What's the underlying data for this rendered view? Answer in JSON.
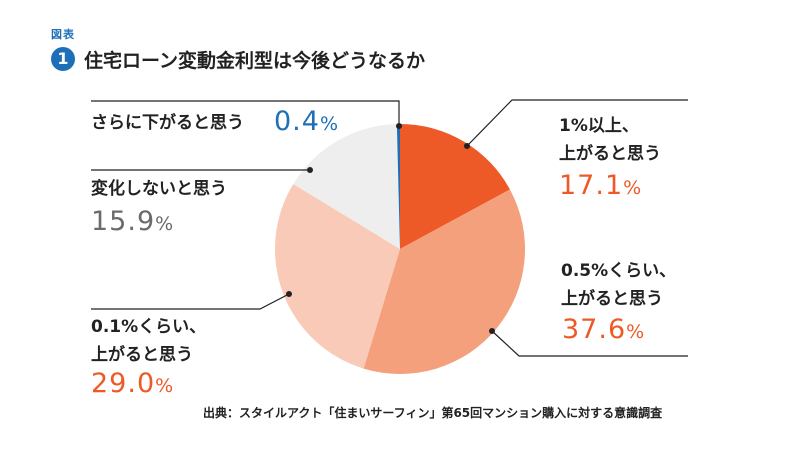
{
  "figure_label": "図表",
  "badge_number": "1",
  "title": "住宅ローン変動金利型は今後どうなるか",
  "source": "出典：スタイルアクト「住まいサーフィン」第65回マンション購入に対する意識調査",
  "chart_data": {
    "type": "pie",
    "start_angle_deg": 0,
    "direction": "clockwise",
    "slices": [
      {
        "label_lines": [
          "1%以上、",
          "上がると思う"
        ],
        "value": 17.1,
        "value_text": "17.1",
        "unit": "%",
        "color": "#ee5a27",
        "label_color": "#ee5a27"
      },
      {
        "label_lines": [
          "0.5%くらい、",
          "上がると思う"
        ],
        "value": 37.6,
        "value_text": "37.6",
        "unit": "%",
        "color": "#f4a07c",
        "label_color": "#ee5a27"
      },
      {
        "label_lines": [
          "0.1%くらい、",
          "上がると思う"
        ],
        "value": 29.0,
        "value_text": "29.0",
        "unit": "%",
        "color": "#f8cab7",
        "label_color": "#ee5a27"
      },
      {
        "label_lines": [
          "変化しないと思う"
        ],
        "value": 15.9,
        "value_text": "15.9",
        "unit": "%",
        "color": "#eeeeee",
        "label_color": "#6b6b6b"
      },
      {
        "label_lines": [
          "さらに下がると思う"
        ],
        "value": 0.4,
        "value_text": "0.4",
        "unit": "%",
        "color": "#1f6fb8",
        "label_color": "#1f6fb8"
      }
    ]
  }
}
